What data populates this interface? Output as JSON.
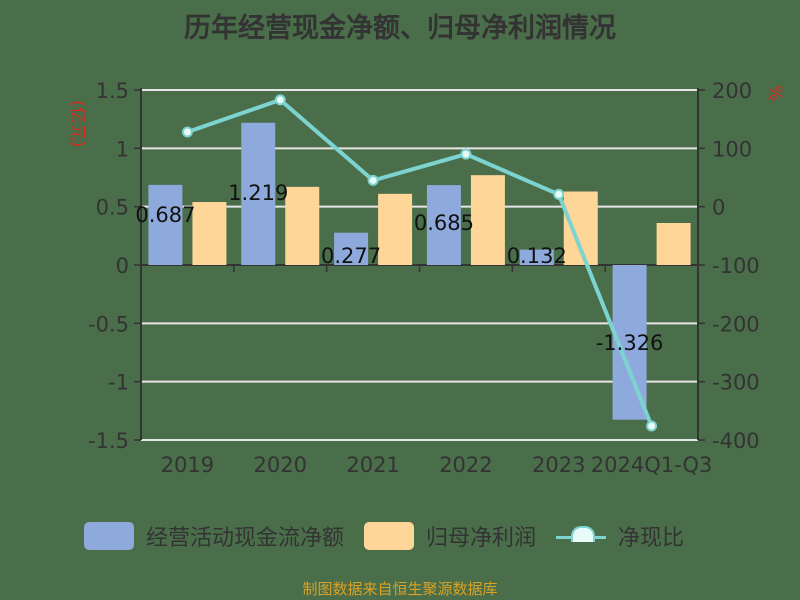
{
  "title": "历年经营现金净额、归母净利润情况",
  "left_axis_unit": "(亿元)",
  "right_axis_unit": "%",
  "legend": {
    "series1": "经营活动现金流净额",
    "series2": "归母净利润",
    "series3": "净现比"
  },
  "source": "制图数据来自恒生聚源数据库",
  "colors": {
    "background": "#4a6e4a",
    "series1": "#8eaadc",
    "series2": "#fdd698",
    "series3": "#7dd3d0",
    "axis_unit": "#d42a1e",
    "source": "#d9a227"
  },
  "chart_data": {
    "type": "bar",
    "title": "历年经营现金净额、归母净利润情况",
    "categories": [
      "2019",
      "2020",
      "2021",
      "2022",
      "2023",
      "2024Q1-Q3"
    ],
    "series": [
      {
        "name": "经营活动现金流净额",
        "type": "bar",
        "axis": "left",
        "values": [
          0.687,
          1.219,
          0.277,
          0.685,
          0.132,
          -1.326
        ],
        "labels": [
          "0.687",
          "1.219",
          "0.277",
          "0.685",
          "0.132",
          "-1.326"
        ]
      },
      {
        "name": "归母净利润",
        "type": "bar",
        "axis": "left",
        "values": [
          0.54,
          0.67,
          0.61,
          0.77,
          0.63,
          0.36
        ]
      },
      {
        "name": "净现比",
        "type": "line",
        "axis": "right",
        "values": [
          128,
          183,
          45,
          90,
          21,
          -376
        ]
      }
    ],
    "ylabel": "(亿元)",
    "ylim": [
      -1.5,
      1.5
    ],
    "yticks": [
      "1.5",
      "1",
      "0.5",
      "0",
      "-0.5",
      "-1",
      "-1.5"
    ],
    "y2label": "%",
    "y2lim": [
      -400,
      200
    ],
    "y2ticks": [
      "200",
      "100",
      "0",
      "-100",
      "-200",
      "-300",
      "-400"
    ],
    "grid": true,
    "legend_position": "bottom"
  }
}
